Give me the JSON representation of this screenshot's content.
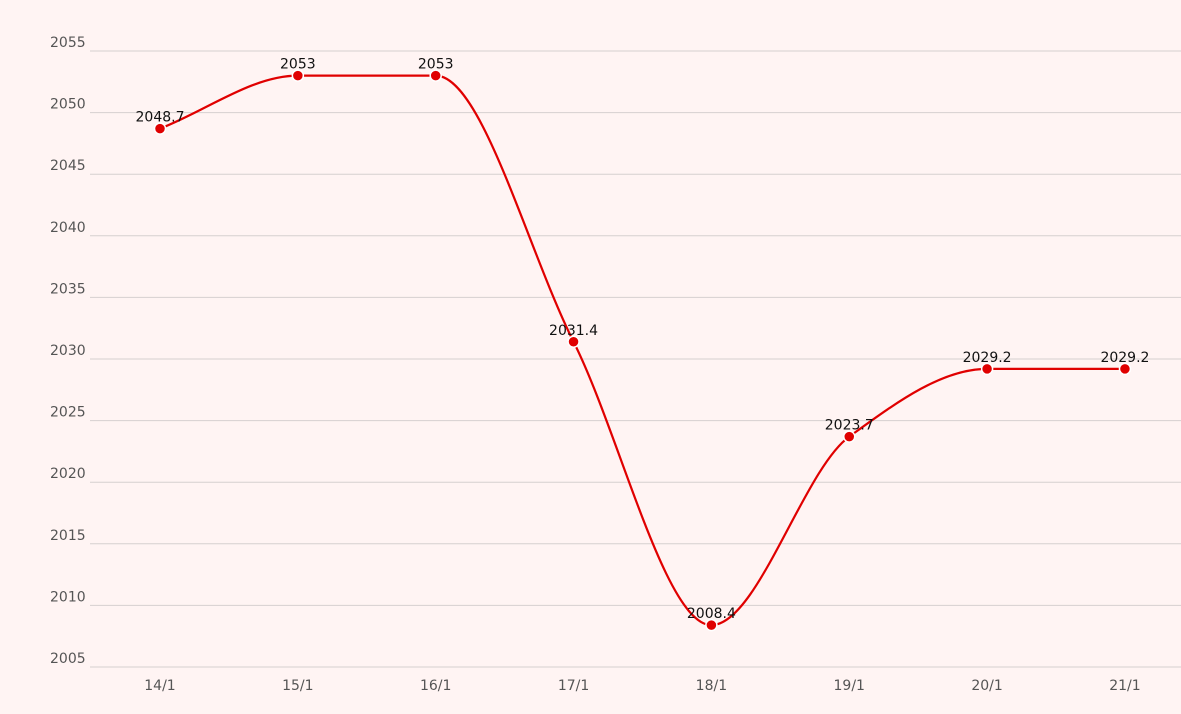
{
  "chart_data": {
    "type": "line",
    "categories": [
      "14/1",
      "15/1",
      "16/1",
      "17/1",
      "18/1",
      "19/1",
      "20/1",
      "21/1"
    ],
    "series": [
      {
        "values": [
          2048.7,
          2053,
          2053,
          2031.4,
          2008.4,
          2023.7,
          2029.2,
          2029.2
        ],
        "labels": [
          "2048.7",
          "2053",
          "2053",
          "2031.4",
          "2008.4",
          "2023.7",
          "2029.2",
          "2029.2"
        ],
        "color": "#e00000"
      }
    ],
    "yticks": [
      "2005",
      "2010",
      "2015",
      "2020",
      "2025",
      "2030",
      "2035",
      "2040",
      "2045",
      "2050",
      "2055"
    ],
    "ylim": [
      2005,
      2055
    ],
    "grid": true,
    "legend": "none",
    "background_color": "#fff4f3",
    "grid_color": "#d6d0cf",
    "tick_label_color": "#555555",
    "data_label_color": "#111111"
  }
}
